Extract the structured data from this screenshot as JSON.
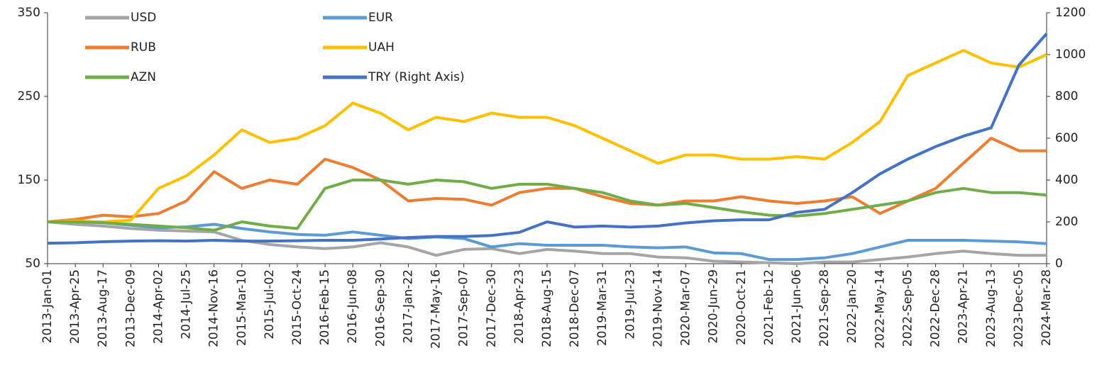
{
  "chart_data": {
    "type": "line",
    "categories": [
      "2013-Jan-01",
      "2013-Apr-25",
      "2013-Aug-17",
      "2013-Dec-09",
      "2014-Apr-02",
      "2014-Jul-25",
      "2014-Nov-16",
      "2015-Mar-10",
      "2015-Jul-02",
      "2015-Oct-24",
      "2016-Feb-15",
      "2016-Jun-08",
      "2016-Sep-30",
      "2017-Jan-22",
      "2017-May-16",
      "2017-Sep-07",
      "2017-Dec-30",
      "2018-Apr-23",
      "2018-Aug-15",
      "2018-Dec-07",
      "2019-Mar-31",
      "2019-Jul-23",
      "2019-Nov-14",
      "2020-Mar-07",
      "2020-Jun-29",
      "2020-Oct-21",
      "2021-Feb-12",
      "2021-Jun-06",
      "2021-Sep-28",
      "2022-Jan-20",
      "2022-May-14",
      "2022-Sep-05",
      "2022-Dec-28",
      "2023-Apr-21",
      "2023-Aug-13",
      "2023-Dec-05",
      "2024-Mar-28"
    ],
    "series": [
      {
        "name": "USD",
        "color": "#a5a5a5",
        "values": [
          100,
          97,
          95,
          92,
          90,
          89,
          88,
          78,
          73,
          70,
          68,
          70,
          75,
          70,
          60,
          67,
          68,
          62,
          67,
          65,
          62,
          62,
          58,
          57,
          53,
          52,
          51,
          50,
          52,
          52,
          55,
          58,
          62,
          65,
          62,
          60,
          60
        ]
      },
      {
        "name": "EUR",
        "color": "#5b9bd5",
        "values": [
          100,
          100,
          99,
          96,
          93,
          94,
          97,
          92,
          88,
          85,
          84,
          88,
          84,
          80,
          82,
          80,
          70,
          74,
          72,
          72,
          72,
          70,
          69,
          70,
          63,
          62,
          55,
          55,
          57,
          62,
          70,
          78,
          78,
          78,
          77,
          76,
          74
        ]
      },
      {
        "name": "RUB",
        "color": "#ed7d31",
        "values": [
          100,
          103,
          108,
          106,
          110,
          125,
          160,
          140,
          150,
          145,
          175,
          165,
          150,
          125,
          128,
          127,
          120,
          135,
          140,
          140,
          130,
          122,
          120,
          125,
          125,
          130,
          125,
          122,
          125,
          130,
          110,
          125,
          140,
          170,
          200,
          185,
          185
        ]
      },
      {
        "name": "UAH",
        "color": "#ffc000",
        "values": [
          100,
          101,
          100,
          102,
          140,
          155,
          180,
          210,
          195,
          200,
          215,
          242,
          230,
          210,
          225,
          220,
          230,
          225,
          225,
          215,
          200,
          185,
          170,
          180,
          180,
          175,
          175,
          178,
          175,
          195,
          220,
          275,
          290,
          305,
          290,
          285,
          300
        ]
      },
      {
        "name": "AZN",
        "color": "#70ad47",
        "values": [
          100,
          100,
          99,
          97,
          95,
          93,
          90,
          100,
          95,
          92,
          140,
          150,
          150,
          145,
          150,
          148,
          140,
          145,
          145,
          140,
          135,
          125,
          120,
          122,
          117,
          112,
          108,
          107,
          110,
          115,
          120,
          125,
          135,
          140,
          135,
          135,
          132
        ]
      },
      {
        "name": "TRY (Right Axis)",
        "color": "#4472c4",
        "axis": "y2",
        "values": [
          98,
          100,
          105,
          108,
          110,
          108,
          112,
          108,
          108,
          110,
          112,
          112,
          118,
          125,
          130,
          130,
          135,
          150,
          200,
          175,
          180,
          175,
          180,
          195,
          205,
          210,
          210,
          245,
          260,
          340,
          430,
          500,
          560,
          610,
          650,
          950,
          1100
        ]
      }
    ],
    "ylim": [
      50,
      350
    ],
    "yticks": [
      50,
      150,
      250,
      350
    ],
    "y2lim": [
      0,
      1200
    ],
    "y2ticks": [
      0,
      200,
      400,
      600,
      800,
      1000,
      1200
    ],
    "legend": "upper left"
  }
}
